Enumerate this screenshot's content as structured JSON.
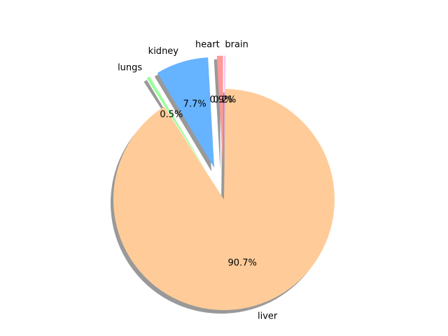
{
  "chart_data": {
    "type": "pie",
    "title": "",
    "categories": [
      "heart",
      "kidney",
      "lungs",
      "liver",
      "brain"
    ],
    "values": [
      0.9,
      7.7,
      0.5,
      90.7,
      0.2
    ],
    "value_labels": [
      "0.9%",
      "7.7%",
      "0.5%",
      "90.7%",
      "0.2%"
    ],
    "explode": [
      0.3,
      0.3,
      0.3,
      0.0,
      0.3
    ],
    "colors": [
      "#ff9999",
      "#66b3ff",
      "#99ff99",
      "#ffcc99",
      "#ffb3e6"
    ],
    "start_angle_deg": 90,
    "direction": "counterclockwise",
    "shadow": true,
    "legend": "none"
  }
}
